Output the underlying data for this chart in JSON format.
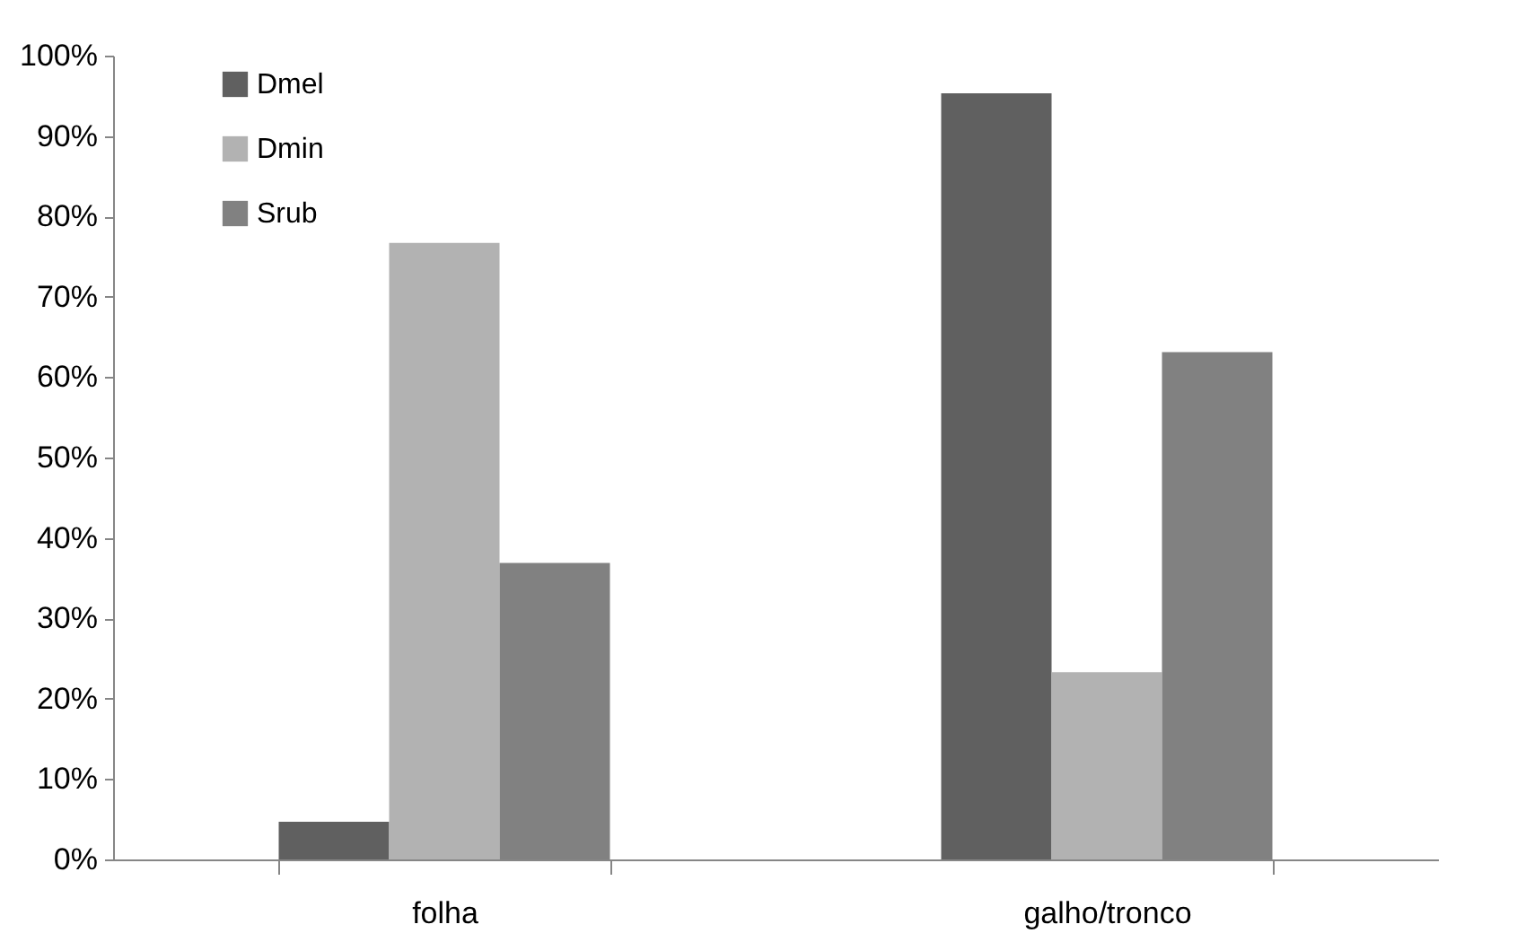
{
  "chart_data": {
    "type": "bar",
    "categories": [
      "folha",
      "galho/tronco"
    ],
    "series": [
      {
        "name": "Dmel",
        "color": "#606060",
        "values": [
          4.7,
          95.3
        ]
      },
      {
        "name": "Dmin",
        "color": "#b2b2b2",
        "values": [
          76.7,
          23.3
        ]
      },
      {
        "name": "Srub",
        "color": "#818181",
        "values": [
          36.9,
          63.1
        ]
      }
    ],
    "ylim": [
      0,
      100
    ],
    "yticks": [
      {
        "value": 0,
        "label": "0%"
      },
      {
        "value": 10,
        "label": "10%"
      },
      {
        "value": 20,
        "label": "20%"
      },
      {
        "value": 30,
        "label": "30%"
      },
      {
        "value": 40,
        "label": "40%"
      },
      {
        "value": 50,
        "label": "50%"
      },
      {
        "value": 60,
        "label": "60%"
      },
      {
        "value": 70,
        "label": "70%"
      },
      {
        "value": 80,
        "label": "80%"
      },
      {
        "value": 90,
        "label": "90%"
      },
      {
        "value": 100,
        "label": "100%"
      }
    ],
    "grid": false,
    "legend": "top left"
  }
}
